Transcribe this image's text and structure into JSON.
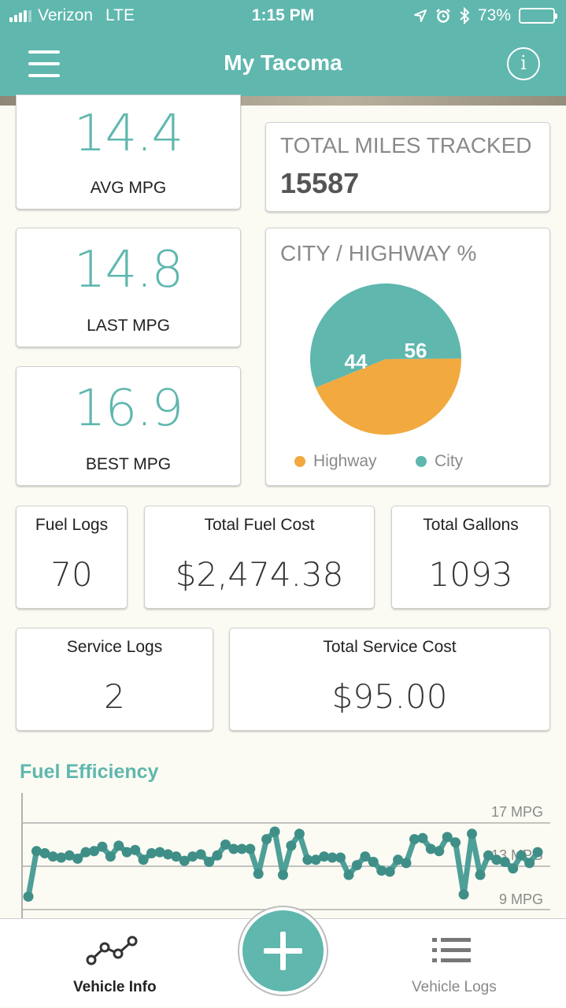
{
  "status_bar": {
    "carrier": "Verizon",
    "network": "LTE",
    "time": "1:15 PM",
    "battery": "73%",
    "battery_level": 0.73
  },
  "nav": {
    "title": "My Tacoma",
    "menu_icon": "hamburger-menu-icon",
    "info_icon": "info-icon"
  },
  "stats": {
    "avg_mpg": {
      "value": "14.4",
      "label": "AVG MPG"
    },
    "last_mpg": {
      "value": "14.8",
      "label": "LAST MPG"
    },
    "best_mpg": {
      "value": "16.9",
      "label": "BEST MPG"
    },
    "total_miles": {
      "label": "TOTAL MILES TRACKED",
      "value": "15587"
    }
  },
  "city_highway": {
    "title": "CITY / HIGHWAY %",
    "highway_label": "Highway",
    "city_label": "City",
    "highway_value": "44",
    "city_value": "56",
    "highway_color": "#f2a93f",
    "city_color": "#5fb7ae"
  },
  "fuel": {
    "logs_label": "Fuel Logs",
    "logs_value": "70",
    "cost_label": "Total Fuel Cost",
    "cost_value": "$2,474.38",
    "gallons_label": "Total Gallons",
    "gallons_value": "1093"
  },
  "service": {
    "logs_label": "Service Logs",
    "logs_value": "2",
    "cost_label": "Total Service Cost",
    "cost_value": "$95.00"
  },
  "fuel_efficiency": {
    "title": "Fuel Efficiency",
    "tick_top": "17 MPG",
    "tick_mid": "13 MPG",
    "tick_bottom": "9 MPG"
  },
  "chart_data": {
    "type": "line",
    "title": "Fuel Efficiency",
    "ylim": [
      8,
      18
    ],
    "yticks": [
      "17 MPG",
      "13 MPG",
      "9 MPG"
    ],
    "series": [
      {
        "values": [
          10.2,
          14.4,
          14.2,
          13.9,
          13.8,
          14.0,
          13.7,
          14.3,
          14.4,
          14.8,
          13.9,
          14.9,
          14.3,
          14.5,
          13.6,
          14.2,
          14.3,
          14.1,
          13.9,
          13.5,
          13.9,
          14.1,
          13.4,
          14.0,
          15.0,
          14.6,
          14.6,
          14.6,
          12.3,
          15.5,
          16.2,
          12.2,
          14.9,
          16.0,
          13.6,
          13.6,
          13.9,
          13.8,
          13.8,
          12.2,
          13.1,
          13.9,
          13.4,
          12.6,
          12.5,
          13.6,
          13.3,
          15.5,
          15.6,
          14.6,
          14.4,
          15.7,
          15.2,
          10.4,
          16.0,
          12.2,
          14.0,
          13.6,
          13.4,
          12.8,
          14.0,
          13.3,
          14.3
        ]
      }
    ],
    "color": "#4e9f97"
  },
  "tab_bar": {
    "vehicle_info": "Vehicle Info",
    "vehicle_logs": "Vehicle Logs"
  }
}
